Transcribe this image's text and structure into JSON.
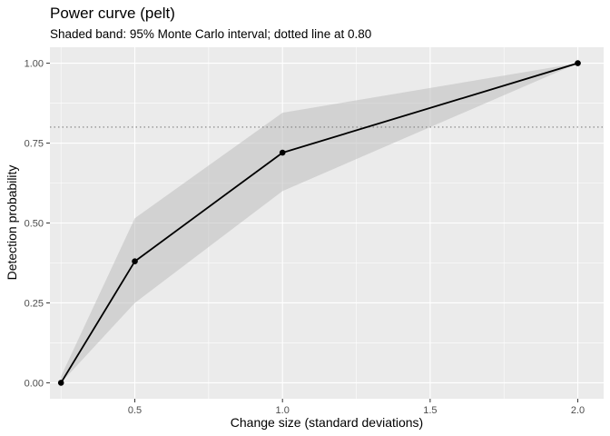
{
  "chart_data": {
    "type": "line",
    "title": "Power curve (pelt)",
    "subtitle": "Shaded band: 95% Monte Carlo interval; dotted line at 0.80",
    "xlabel": "Change size (standard deviations)",
    "ylabel": "Detection probability",
    "x": [
      0.25,
      0.5,
      1.0,
      2.0
    ],
    "series": [
      {
        "values": [
          0.0,
          0.38,
          0.72,
          1.0
        ],
        "lower": [
          0.0,
          0.25,
          0.6,
          1.0
        ],
        "upper": [
          0.02,
          0.515,
          0.845,
          1.0
        ],
        "color": "#000000",
        "band_color": "#bdbdbd"
      }
    ],
    "reference_line": {
      "y": 0.8,
      "style": "dotted",
      "color": "#808080"
    },
    "xlim": [
      0.2125,
      2.0875
    ],
    "ylim": [
      -0.05,
      1.05
    ],
    "x_ticks": [
      0.5,
      1.0,
      1.5,
      2.0
    ],
    "x_tick_labels": [
      "0.5",
      "1.0",
      "1.5",
      "2.0"
    ],
    "y_ticks": [
      0.0,
      0.25,
      0.5,
      0.75,
      1.0
    ],
    "y_tick_labels": [
      "0.00",
      "0.25",
      "0.50",
      "0.75",
      "1.00"
    ],
    "grid": true,
    "legend": "none",
    "panel_background": "#ebebeb",
    "grid_color": "#ffffff"
  }
}
